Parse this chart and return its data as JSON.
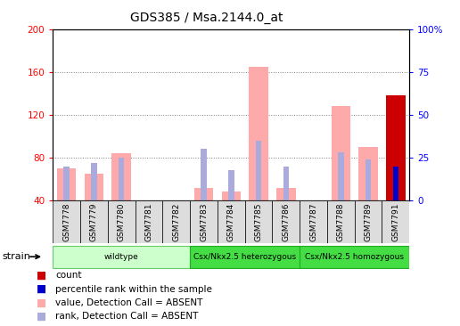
{
  "title": "GDS385 / Msa.2144.0_at",
  "samples": [
    "GSM7778",
    "GSM7779",
    "GSM7780",
    "GSM7781",
    "GSM7782",
    "GSM7783",
    "GSM7784",
    "GSM7785",
    "GSM7786",
    "GSM7787",
    "GSM7788",
    "GSM7789",
    "GSM7791"
  ],
  "value_absent": [
    70,
    65,
    84,
    0,
    0,
    52,
    48,
    165,
    52,
    0,
    128,
    90,
    0
  ],
  "rank_absent_pct": [
    20,
    22,
    25,
    0,
    0,
    30,
    18,
    35,
    20,
    0,
    28,
    24,
    0
  ],
  "count": [
    0,
    0,
    0,
    0,
    0,
    0,
    0,
    0,
    0,
    0,
    0,
    0,
    138
  ],
  "percentile_rank_pct": [
    0,
    0,
    0,
    0,
    0,
    0,
    0,
    0,
    0,
    0,
    0,
    0,
    20
  ],
  "ylim_left": [
    40,
    200
  ],
  "ylim_right": [
    0,
    100
  ],
  "yticks_left": [
    40,
    80,
    120,
    160,
    200
  ],
  "yticks_right": [
    0,
    25,
    50,
    75,
    100
  ],
  "color_count": "#cc0000",
  "color_rank": "#0000cc",
  "color_value_absent": "#ffaaaa",
  "color_rank_absent": "#aaaadd",
  "bar_width": 0.7
}
